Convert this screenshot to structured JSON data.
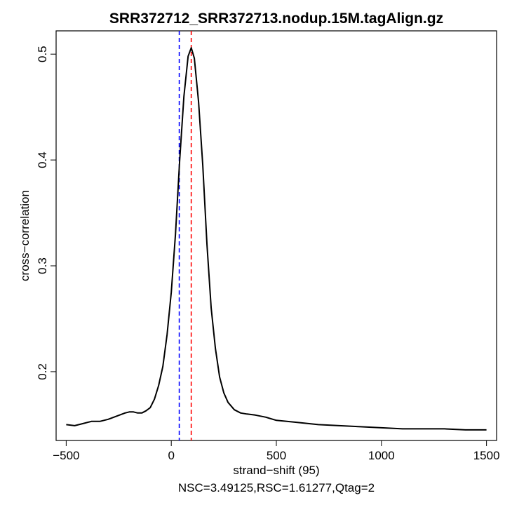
{
  "chart_data": {
    "type": "line",
    "title": "SRR372712_SRR372713.nodup.15M.tagAlign.gz",
    "xlabel": "strand−shift (95)",
    "ylabel": "cross−correlation",
    "subtitle": "NSC=3.49125,RSC=1.61277,Qtag=2",
    "xlim": [
      -548,
      1548
    ],
    "ylim": [
      0.135,
      0.522
    ],
    "x_ticks": [
      -500,
      0,
      500,
      1000,
      1500
    ],
    "x_tick_labels": [
      "−500",
      "0",
      "500",
      "1000",
      "1500"
    ],
    "y_ticks": [
      0.2,
      0.3,
      0.4,
      0.5
    ],
    "y_tick_labels": [
      "0.2",
      "0.3",
      "0.4",
      "0.5"
    ],
    "grid": false,
    "legend": "none",
    "series": [
      {
        "x": [
          -500,
          -460,
          -420,
          -380,
          -340,
          -300,
          -260,
          -220,
          -200,
          -180,
          -160,
          -140,
          -120,
          -100,
          -80,
          -60,
          -40,
          -20,
          0,
          20,
          40,
          60,
          80,
          95,
          110,
          130,
          150,
          170,
          190,
          210,
          230,
          250,
          270,
          300,
          330,
          360,
          400,
          450,
          500,
          600,
          700,
          800,
          900,
          1000,
          1100,
          1200,
          1300,
          1400,
          1500
        ],
        "y": [
          0.15,
          0.149,
          0.151,
          0.153,
          0.153,
          0.155,
          0.158,
          0.161,
          0.162,
          0.162,
          0.161,
          0.161,
          0.163,
          0.166,
          0.174,
          0.187,
          0.205,
          0.235,
          0.275,
          0.33,
          0.4,
          0.46,
          0.498,
          0.506,
          0.496,
          0.455,
          0.395,
          0.32,
          0.26,
          0.222,
          0.195,
          0.18,
          0.171,
          0.164,
          0.161,
          0.16,
          0.159,
          0.157,
          0.154,
          0.152,
          0.15,
          0.149,
          0.148,
          0.147,
          0.146,
          0.146,
          0.146,
          0.145,
          0.145
        ],
        "color": "#000000"
      }
    ],
    "reference_lines": [
      {
        "x": 38,
        "color": "#0000ff",
        "style": "dashed"
      },
      {
        "x": 95,
        "color": "#ff0000",
        "style": "dashed"
      }
    ]
  }
}
